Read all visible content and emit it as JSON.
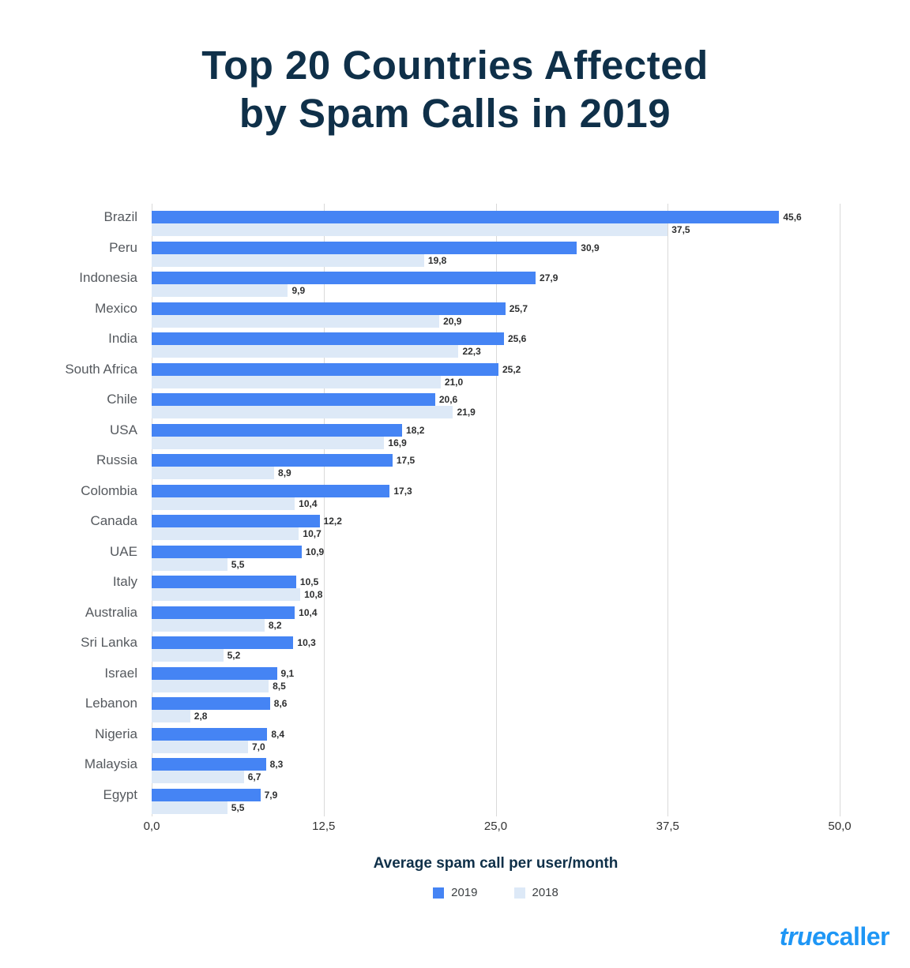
{
  "title": {
    "line1": "Top 20 Countries Affected",
    "line2": "by Spam Calls in 2019"
  },
  "chart_data": {
    "type": "bar",
    "orientation": "horizontal",
    "title": "Top 20 Countries Affected by Spam Calls in 2019",
    "xlabel": "Average spam call per user/month",
    "xlim": [
      0,
      50
    ],
    "grid": true,
    "legend_position": "bottom",
    "x_ticks": [
      "0,0",
      "12,5",
      "25,0",
      "37,5",
      "50,0"
    ],
    "x_tick_values": [
      0,
      12.5,
      25,
      37.5,
      50
    ],
    "categories": [
      "Brazil",
      "Peru",
      "Indonesia",
      "Mexico",
      "India",
      "South Africa",
      "Chile",
      "USA",
      "Russia",
      "Colombia",
      "Canada",
      "UAE",
      "Italy",
      "Australia",
      "Sri Lanka",
      "Israel",
      "Lebanon",
      "Nigeria",
      "Malaysia",
      "Egypt"
    ],
    "series": [
      {
        "name": "2019",
        "color": "#4584f4",
        "values": [
          45.6,
          30.9,
          27.9,
          25.7,
          25.6,
          25.2,
          20.6,
          18.2,
          17.5,
          17.3,
          12.2,
          10.9,
          10.5,
          10.4,
          10.3,
          9.1,
          8.6,
          8.4,
          8.3,
          7.9
        ]
      },
      {
        "name": "2018",
        "color": "#dde9f7",
        "values": [
          37.5,
          19.8,
          9.9,
          20.9,
          22.3,
          21.0,
          21.9,
          16.9,
          8.9,
          10.4,
          10.7,
          5.5,
          10.8,
          8.2,
          5.2,
          8.5,
          2.8,
          7.0,
          6.7,
          5.5
        ]
      }
    ],
    "value_label_format": "decimal-comma"
  },
  "colors": {
    "title_navy": "#0f3049",
    "bar_2019": "#4584f4",
    "bar_2018": "#dde9f7",
    "gridline": "#d9d9d9",
    "country_label": "#55595e",
    "value_label": "#2d2e2f",
    "tick_label": "#333333",
    "logo_blue": "#1e96f5"
  },
  "footer": {
    "brand_true": "true",
    "brand_caller": "caller"
  }
}
